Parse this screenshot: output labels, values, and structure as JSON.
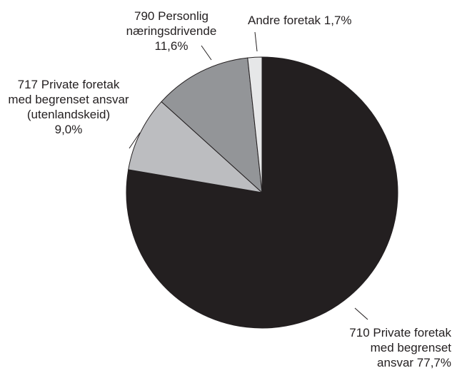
{
  "chart_data": {
    "type": "pie",
    "categories": [
      "710 Private foretak\nmed begrenset\nansvar",
      "717 Private foretak\nmed begrenset ansvar\n(utenlandskeid)",
      "790 Personlig\nnæringsdrivende",
      "Andre foretak"
    ],
    "values": [
      77.7,
      9.0,
      11.6,
      1.7
    ],
    "value_labels": [
      "77,7%",
      "9,0%",
      "11,6%",
      "1,7%"
    ],
    "colors": [
      "#231f20",
      "#bcbdc0",
      "#939598",
      "#e6e7e8"
    ]
  }
}
